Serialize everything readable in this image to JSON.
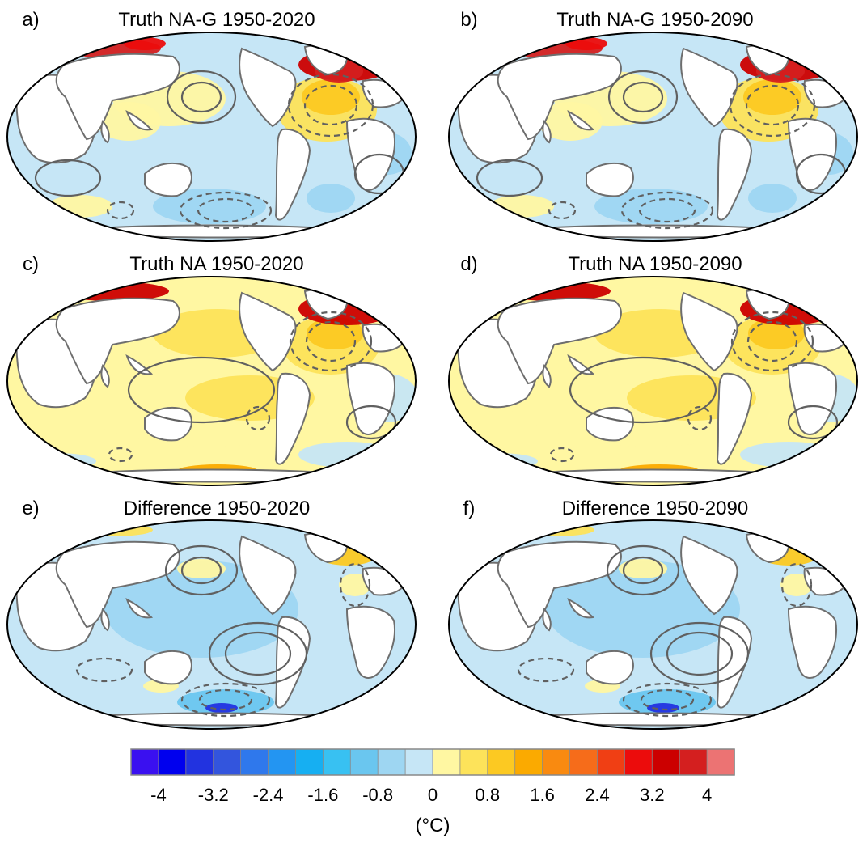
{
  "chart_data": {
    "type": "heatmap",
    "panels": [
      {
        "id": "a",
        "label": "a)",
        "title": "Truth NA-G 1950-2020",
        "variant": "nag"
      },
      {
        "id": "b",
        "label": "b)",
        "title": "Truth NA-G 1950-2090",
        "variant": "nag"
      },
      {
        "id": "c",
        "label": "c)",
        "title": "Truth NA 1950-2020",
        "variant": "na"
      },
      {
        "id": "d",
        "label": "d)",
        "title": "Truth NA 1950-2090",
        "variant": "na"
      },
      {
        "id": "e",
        "label": "e)",
        "title": "Difference 1950-2020",
        "variant": "diff"
      },
      {
        "id": "f",
        "label": "f)",
        "title": "Difference 1950-2090",
        "variant": "diff"
      }
    ],
    "colorbar": {
      "levels": [
        -4,
        -3.6,
        -3.2,
        -2.8,
        -2.4,
        -2,
        -1.6,
        -1.2,
        -0.8,
        -0.4,
        0,
        0.4,
        0.8,
        1.2,
        1.6,
        2,
        2.4,
        2.8,
        3.2,
        3.6,
        4
      ],
      "colors": [
        "#3a10f0",
        "#0000ee",
        "#2233e0",
        "#3355dd",
        "#2f78ec",
        "#2395f2",
        "#16aff2",
        "#38c1f2",
        "#6ac6ef",
        "#9ed6f2",
        "#c6e6f6",
        "#fff7a2",
        "#fde35a",
        "#fcc922",
        "#fbaa00",
        "#f98a10",
        "#f66c1a",
        "#f03f14",
        "#ec0c0c",
        "#cc0000",
        "#d41f1f",
        "#ec7373"
      ],
      "tick_labels": [
        "-4",
        "-3.2",
        "-2.4",
        "-1.6",
        "-0.8",
        "0",
        "0.8",
        "1.6",
        "2.4",
        "3.2",
        "4"
      ],
      "unit_label": "(°C)",
      "range": [
        -4,
        4
      ]
    }
  }
}
